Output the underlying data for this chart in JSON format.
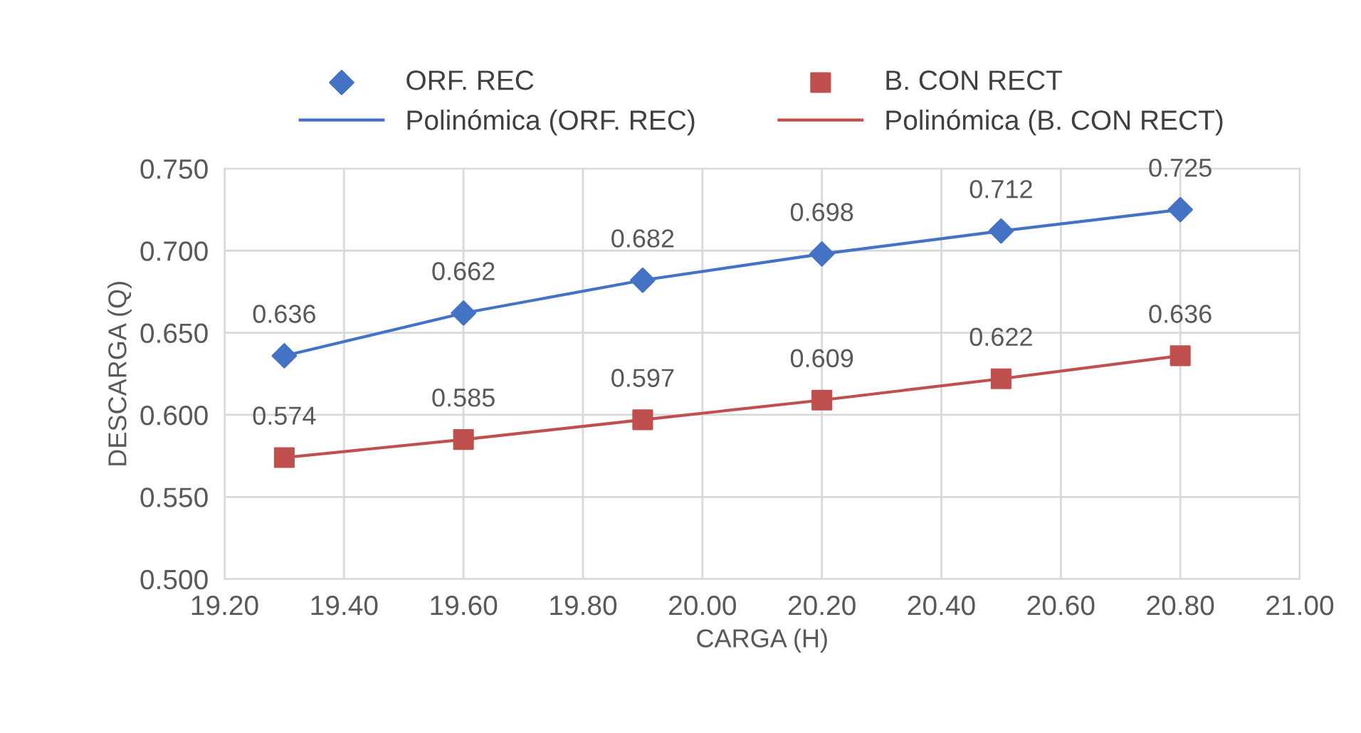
{
  "chart_data": {
    "type": "scatter",
    "xlabel": "CARGA (H)",
    "ylabel": "DESCARGA (Q)",
    "xlim": [
      19.2,
      21.0
    ],
    "xticks": [
      {
        "value": 19.2,
        "label": "19.20"
      },
      {
        "value": 19.4,
        "label": "19.40"
      },
      {
        "value": 19.6,
        "label": "19.60"
      },
      {
        "value": 19.8,
        "label": "19.80"
      },
      {
        "value": 20.0,
        "label": "20.00"
      },
      {
        "value": 20.2,
        "label": "20.20"
      },
      {
        "value": 20.4,
        "label": "20.40"
      },
      {
        "value": 20.6,
        "label": "20.60"
      },
      {
        "value": 20.8,
        "label": "20.80"
      },
      {
        "value": 21.0,
        "label": "21.00"
      }
    ],
    "ylim": [
      0.5,
      0.75
    ],
    "yticks": [
      {
        "value": 0.5,
        "label": "0.500"
      },
      {
        "value": 0.55,
        "label": "0.550"
      },
      {
        "value": 0.6,
        "label": "0.600"
      },
      {
        "value": 0.65,
        "label": "0.650"
      },
      {
        "value": 0.7,
        "label": "0.700"
      },
      {
        "value": 0.75,
        "label": "0.750"
      }
    ],
    "grid": true,
    "legend": "top",
    "series": [
      {
        "name": "ORF. REC",
        "marker": "diamond",
        "color": "#4472c4",
        "x": [
          19.3,
          19.6,
          19.9,
          20.2,
          20.5,
          20.8
        ],
        "values": [
          0.636,
          0.662,
          0.682,
          0.698,
          0.712,
          0.725
        ],
        "value_labels": [
          "0.636",
          "0.662",
          "0.682",
          "0.698",
          "0.712",
          "0.725"
        ]
      },
      {
        "name": "B. CON RECT",
        "marker": "square",
        "color": "#c0504d",
        "x": [
          19.3,
          19.6,
          19.9,
          20.2,
          20.5,
          20.8
        ],
        "values": [
          0.574,
          0.585,
          0.597,
          0.609,
          0.622,
          0.636
        ],
        "value_labels": [
          "0.574",
          "0.585",
          "0.597",
          "0.609",
          "0.622",
          "0.636"
        ]
      },
      {
        "name": "Polinómica (ORF. REC)",
        "type": "line",
        "line_style": "solid",
        "color": "#4472c4",
        "x": [
          19.3,
          19.6,
          19.9,
          20.2,
          20.5,
          20.8
        ],
        "values": [
          0.636,
          0.662,
          0.682,
          0.698,
          0.712,
          0.725
        ]
      },
      {
        "name": "Polinómica (B. CON RECT)",
        "type": "line",
        "line_style": "solid",
        "color": "#c0504d",
        "x": [
          19.3,
          19.6,
          19.9,
          20.2,
          20.5,
          20.8
        ],
        "values": [
          0.574,
          0.585,
          0.597,
          0.609,
          0.622,
          0.636
        ]
      }
    ]
  }
}
